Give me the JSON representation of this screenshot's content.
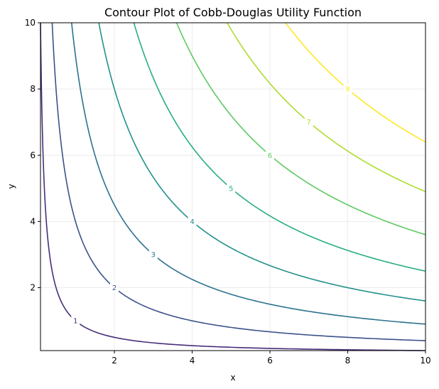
{
  "chart_data": {
    "type": "contour",
    "title": "Contour Plot of Cobb-Douglas Utility Function",
    "xlabel": "x",
    "ylabel": "y",
    "function": "U = sqrt(x*y)",
    "xlim": [
      0.1,
      10
    ],
    "ylim": [
      0.1,
      10
    ],
    "xticks": [
      "2",
      "4",
      "6",
      "8",
      "10"
    ],
    "yticks": [
      "2",
      "4",
      "6",
      "8",
      "10"
    ],
    "xtick_values": [
      2,
      4,
      6,
      8,
      10
    ],
    "ytick_values": [
      2,
      4,
      6,
      8,
      10
    ],
    "grid": true,
    "levels": [
      {
        "value": 0,
        "label": "",
        "color": "#440154"
      },
      {
        "value": 1,
        "label": "1",
        "color": "#472d7b"
      },
      {
        "value": 2,
        "label": "2",
        "color": "#3b528b"
      },
      {
        "value": 3,
        "label": "3",
        "color": "#2c728e"
      },
      {
        "value": 4,
        "label": "4",
        "color": "#21918c"
      },
      {
        "value": 5,
        "label": "5",
        "color": "#28ae80"
      },
      {
        "value": 6,
        "label": "6",
        "color": "#5ec962"
      },
      {
        "value": 7,
        "label": "7",
        "color": "#addc30"
      },
      {
        "value": 8,
        "label": "8",
        "color": "#fde725"
      }
    ]
  }
}
